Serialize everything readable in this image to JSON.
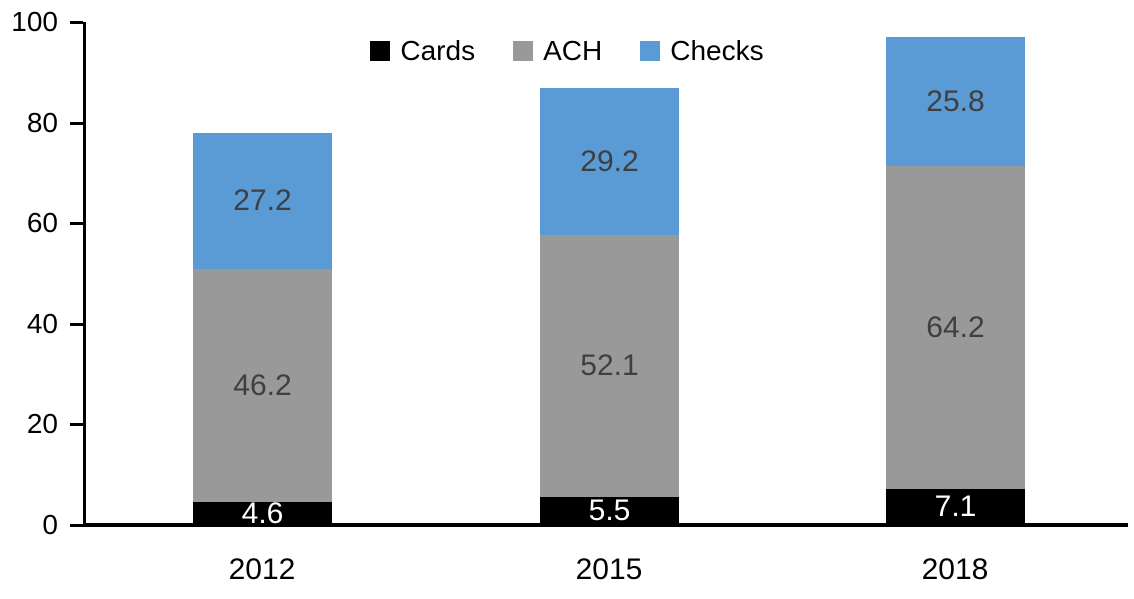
{
  "chart_data": {
    "type": "bar",
    "stacked": true,
    "title": "",
    "xlabel": "",
    "ylabel": "",
    "categories": [
      "2012",
      "2015",
      "2018"
    ],
    "series": [
      {
        "name": "Cards",
        "color": "#000000",
        "label_color": "#ffffff",
        "values": [
          4.6,
          5.5,
          7.1
        ]
      },
      {
        "name": "ACH",
        "color": "#999999",
        "label_color": "#3f3f3f",
        "values": [
          46.2,
          52.1,
          64.2
        ]
      },
      {
        "name": "Checks",
        "color": "#5b9bd5",
        "label_color": "#3f3f3f",
        "values": [
          27.2,
          29.2,
          25.8
        ]
      }
    ],
    "y_ticks": [
      0,
      20,
      40,
      60,
      80,
      100
    ],
    "ylim": [
      0,
      100
    ],
    "grid": false,
    "legend_position": "top",
    "axis_color": "#000000",
    "tick_label_color": "#000000"
  }
}
